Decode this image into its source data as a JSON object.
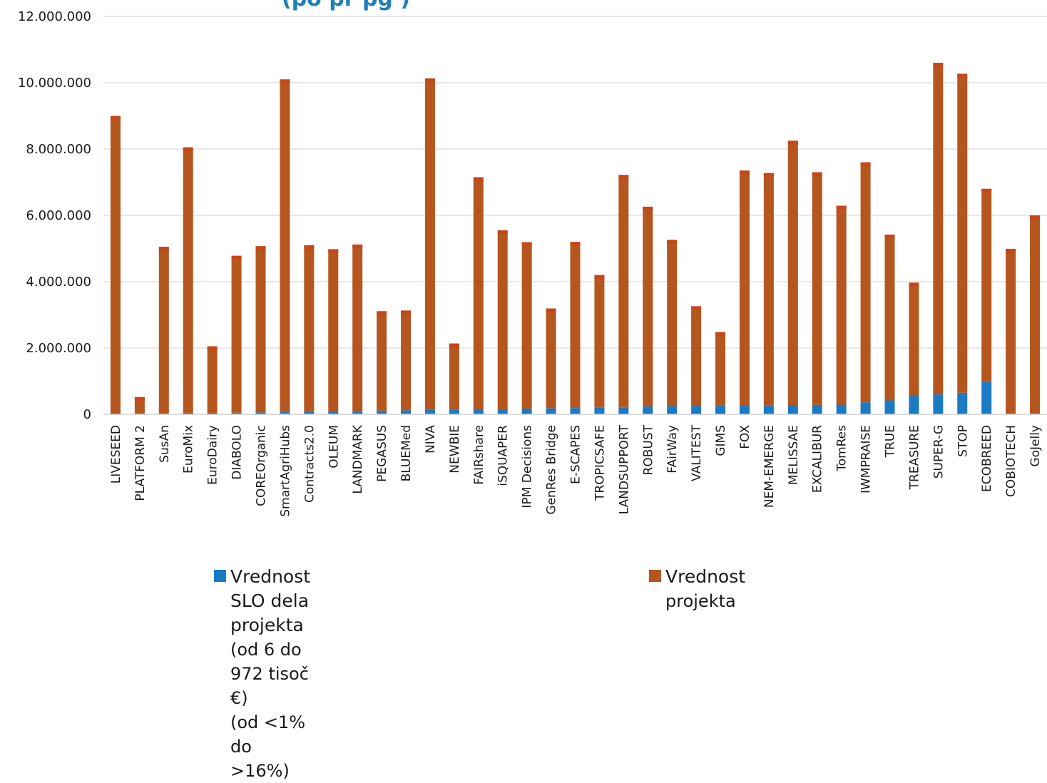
{
  "chart_data": {
    "type": "bar",
    "stacked": true,
    "title": "(po        pr         pg                     )",
    "ylim": [
      0,
      12000000
    ],
    "yticks": [
      0,
      2000000,
      4000000,
      6000000,
      8000000,
      10000000,
      12000000
    ],
    "ytick_labels": [
      "0",
      "2.000.000",
      "4.000.000",
      "6.000.000",
      "8.000.000",
      "10.000.000",
      "12.000.000"
    ],
    "grid": "horizontal",
    "legend_position": "bottom",
    "categories": [
      "LIVESEED",
      "PLATFORM 2",
      "SusAn",
      "EuroMix",
      "EuroDairy",
      "DIABOLO",
      "COREOrganic",
      "SmartAgriHubs",
      "Contracts2.0",
      "OLEUM",
      "LANDMARK",
      "PEGASUS",
      "BLUEMed",
      "NIVA",
      "NEWBIE",
      "FAIRshare",
      "iSQUAPER",
      "IPM Decisions",
      "GenRes Bridge",
      "E-SCAPES",
      "TROPICSAFE",
      "LANDSUPPORT",
      "ROBUST",
      "FAirWay",
      "VALITEST",
      "GIMS",
      "FOX",
      "NEM-EMERGE",
      "MELISSAE",
      "EXCALIBUR",
      "TomRes",
      "IWMPRAISE",
      "TRUE",
      "TREASURE",
      "SUPER-G",
      "STOP",
      "ECOBREED",
      "COBIOTECH",
      "GoJelly"
    ],
    "series": [
      {
        "name": "Vrednost SLO dela projekta",
        "color": "#1a7ac4",
        "values": [
          6000,
          20000,
          40000,
          45000,
          45000,
          50000,
          60000,
          80000,
          90000,
          95000,
          100000,
          110000,
          120000,
          130000,
          135000,
          140000,
          150000,
          170000,
          180000,
          190000,
          200000,
          210000,
          240000,
          250000,
          255000,
          260000,
          270000,
          275000,
          280000,
          285000,
          290000,
          360000,
          420000,
          570000,
          600000,
          650000,
          972000,
          10000,
          20000
        ]
      },
      {
        "name": "Vrednost projekta",
        "color": "#b5561e",
        "values": [
          8994000,
          500000,
          5010000,
          8005000,
          2005000,
          4730000,
          5010000,
          10020000,
          5010000,
          4885000,
          5020000,
          3000000,
          3010000,
          10000000,
          2000000,
          7010000,
          5400000,
          5020000,
          3010000,
          5010000,
          4000000,
          7010000,
          6020000,
          5010000,
          3005000,
          2220000,
          7080000,
          7000000,
          7970000,
          7015000,
          6000000,
          7240000,
          5000000,
          3400000,
          10000000,
          9620000,
          5828000,
          4980000,
          5980000
        ]
      }
    ]
  },
  "legend": {
    "items": [
      {
        "label": "Vrednost SLO dela projekta",
        "sub1": "(od 6 do 972 tisoč €)",
        "sub2": "(od <1% do >16%)",
        "color": "#1a7ac4"
      },
      {
        "label": "Vrednost",
        "sub1": "projekta",
        "color": "#b5561e"
      }
    ]
  }
}
